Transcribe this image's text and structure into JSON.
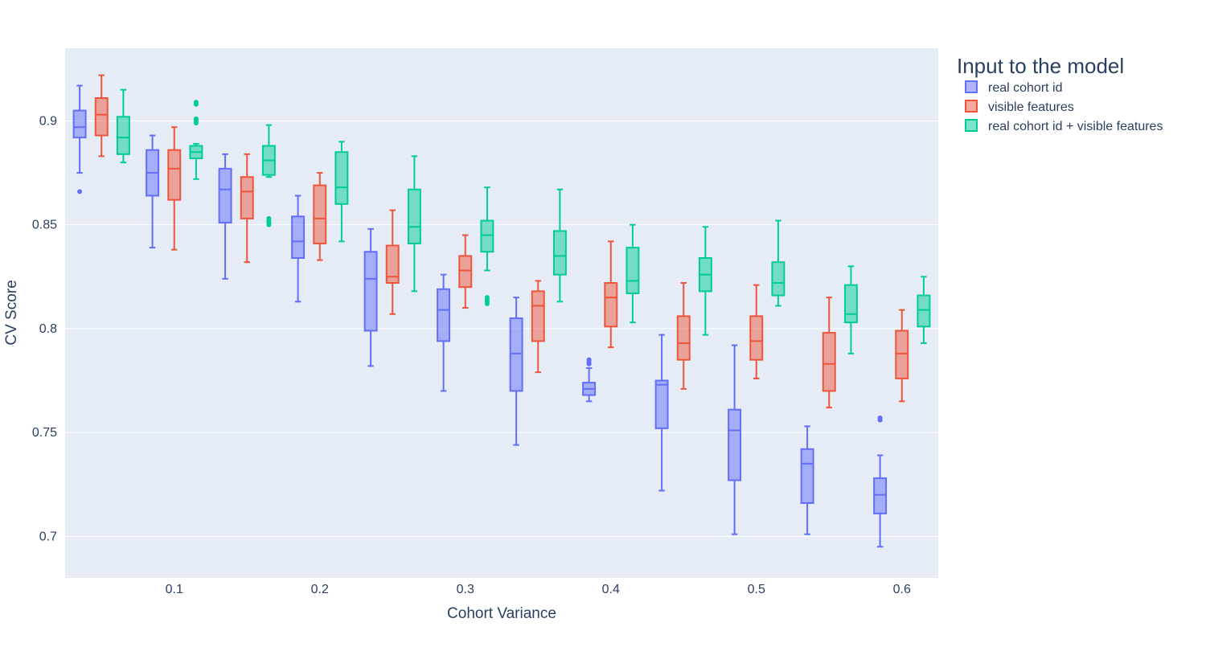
{
  "chart_data": {
    "type": "box",
    "title": "",
    "xlabel": "Cohort Variance",
    "ylabel": "CV Score",
    "xlim": [
      0.025,
      0.625
    ],
    "ylim": [
      0.68,
      0.935
    ],
    "x_ticks": [
      0.1,
      0.2,
      0.3,
      0.4,
      0.5,
      0.6
    ],
    "x_tick_labels": [
      "0.1",
      "0.2",
      "0.3",
      "0.4",
      "0.5",
      "0.6"
    ],
    "y_ticks": [
      0.7,
      0.75,
      0.8,
      0.85,
      0.9
    ],
    "y_tick_labels": [
      "0.7",
      "0.75",
      "0.8",
      "0.85",
      "0.9"
    ],
    "grid": true,
    "legend_title": "Input to the model",
    "legend_position": "top-right, outside plot",
    "x": [
      0.05,
      0.1,
      0.15,
      0.2,
      0.25,
      0.3,
      0.35,
      0.4,
      0.45,
      0.5,
      0.55,
      0.6
    ],
    "series": [
      {
        "name": "real cohort id",
        "color": "#636efa",
        "boxes": [
          {
            "min": 0.875,
            "q1": 0.892,
            "median": 0.897,
            "q3": 0.905,
            "max": 0.917,
            "outliers": [
              0.866
            ]
          },
          {
            "min": 0.839,
            "q1": 0.864,
            "median": 0.875,
            "q3": 0.886,
            "max": 0.893,
            "outliers": []
          },
          {
            "min": 0.824,
            "q1": 0.851,
            "median": 0.867,
            "q3": 0.877,
            "max": 0.884,
            "outliers": []
          },
          {
            "min": 0.813,
            "q1": 0.834,
            "median": 0.842,
            "q3": 0.854,
            "max": 0.864,
            "outliers": []
          },
          {
            "min": 0.782,
            "q1": 0.799,
            "median": 0.824,
            "q3": 0.837,
            "max": 0.848,
            "outliers": []
          },
          {
            "min": 0.77,
            "q1": 0.794,
            "median": 0.809,
            "q3": 0.819,
            "max": 0.826,
            "outliers": []
          },
          {
            "min": 0.744,
            "q1": 0.77,
            "median": 0.788,
            "q3": 0.805,
            "max": 0.815,
            "outliers": []
          },
          {
            "min": 0.765,
            "q1": 0.768,
            "median": 0.771,
            "q3": 0.774,
            "max": 0.781,
            "outliers": [
              0.783,
              0.784,
              0.785
            ]
          },
          {
            "min": 0.722,
            "q1": 0.752,
            "median": 0.773,
            "q3": 0.775,
            "max": 0.797,
            "outliers": []
          },
          {
            "min": 0.701,
            "q1": 0.727,
            "median": 0.751,
            "q3": 0.761,
            "max": 0.792,
            "outliers": []
          },
          {
            "min": 0.701,
            "q1": 0.716,
            "median": 0.735,
            "q3": 0.742,
            "max": 0.753,
            "outliers": []
          },
          {
            "min": 0.695,
            "q1": 0.711,
            "median": 0.72,
            "q3": 0.728,
            "max": 0.739,
            "outliers": [
              0.756,
              0.757
            ]
          }
        ]
      },
      {
        "name": "visible features",
        "color": "#ef553b",
        "boxes": [
          {
            "min": 0.883,
            "q1": 0.893,
            "median": 0.903,
            "q3": 0.911,
            "max": 0.922,
            "outliers": []
          },
          {
            "min": 0.838,
            "q1": 0.862,
            "median": 0.877,
            "q3": 0.886,
            "max": 0.897,
            "outliers": []
          },
          {
            "min": 0.832,
            "q1": 0.853,
            "median": 0.866,
            "q3": 0.873,
            "max": 0.884,
            "outliers": []
          },
          {
            "min": 0.833,
            "q1": 0.841,
            "median": 0.853,
            "q3": 0.869,
            "max": 0.875,
            "outliers": []
          },
          {
            "min": 0.807,
            "q1": 0.822,
            "median": 0.825,
            "q3": 0.84,
            "max": 0.857,
            "outliers": []
          },
          {
            "min": 0.81,
            "q1": 0.82,
            "median": 0.828,
            "q3": 0.835,
            "max": 0.845,
            "outliers": []
          },
          {
            "min": 0.779,
            "q1": 0.794,
            "median": 0.811,
            "q3": 0.818,
            "max": 0.823,
            "outliers": []
          },
          {
            "min": 0.791,
            "q1": 0.801,
            "median": 0.815,
            "q3": 0.822,
            "max": 0.842,
            "outliers": []
          },
          {
            "min": 0.771,
            "q1": 0.785,
            "median": 0.793,
            "q3": 0.806,
            "max": 0.822,
            "outliers": []
          },
          {
            "min": 0.776,
            "q1": 0.785,
            "median": 0.794,
            "q3": 0.806,
            "max": 0.821,
            "outliers": []
          },
          {
            "min": 0.762,
            "q1": 0.77,
            "median": 0.783,
            "q3": 0.798,
            "max": 0.815,
            "outliers": []
          },
          {
            "min": 0.765,
            "q1": 0.776,
            "median": 0.788,
            "q3": 0.799,
            "max": 0.809,
            "outliers": []
          }
        ]
      },
      {
        "name": "real cohort id + visible features",
        "color": "#00cc96",
        "boxes": [
          {
            "min": 0.88,
            "q1": 0.884,
            "median": 0.892,
            "q3": 0.902,
            "max": 0.915,
            "outliers": []
          },
          {
            "min": 0.872,
            "q1": 0.882,
            "median": 0.885,
            "q3": 0.888,
            "max": 0.889,
            "outliers": [
              0.899,
              0.9,
              0.901,
              0.908,
              0.909
            ]
          },
          {
            "min": 0.873,
            "q1": 0.874,
            "median": 0.881,
            "q3": 0.888,
            "max": 0.898,
            "outliers": [
              0.85,
              0.851,
              0.852,
              0.853
            ]
          },
          {
            "min": 0.842,
            "q1": 0.86,
            "median": 0.868,
            "q3": 0.885,
            "max": 0.89,
            "outliers": []
          },
          {
            "min": 0.818,
            "q1": 0.841,
            "median": 0.849,
            "q3": 0.867,
            "max": 0.883,
            "outliers": []
          },
          {
            "min": 0.828,
            "q1": 0.837,
            "median": 0.845,
            "q3": 0.852,
            "max": 0.868,
            "outliers": [
              0.812,
              0.813,
              0.814,
              0.815
            ]
          },
          {
            "min": 0.813,
            "q1": 0.826,
            "median": 0.835,
            "q3": 0.847,
            "max": 0.867,
            "outliers": []
          },
          {
            "min": 0.803,
            "q1": 0.817,
            "median": 0.823,
            "q3": 0.839,
            "max": 0.85,
            "outliers": []
          },
          {
            "min": 0.797,
            "q1": 0.818,
            "median": 0.826,
            "q3": 0.834,
            "max": 0.849,
            "outliers": []
          },
          {
            "min": 0.811,
            "q1": 0.816,
            "median": 0.822,
            "q3": 0.832,
            "max": 0.852,
            "outliers": []
          },
          {
            "min": 0.788,
            "q1": 0.803,
            "median": 0.807,
            "q3": 0.821,
            "max": 0.83,
            "outliers": []
          },
          {
            "min": 0.793,
            "q1": 0.801,
            "median": 0.809,
            "q3": 0.816,
            "max": 0.825,
            "outliers": []
          }
        ]
      }
    ]
  },
  "colors": {
    "plot_background": "#e5ecf6",
    "gridline": "#ffffff",
    "text": "#2a3f5f"
  }
}
